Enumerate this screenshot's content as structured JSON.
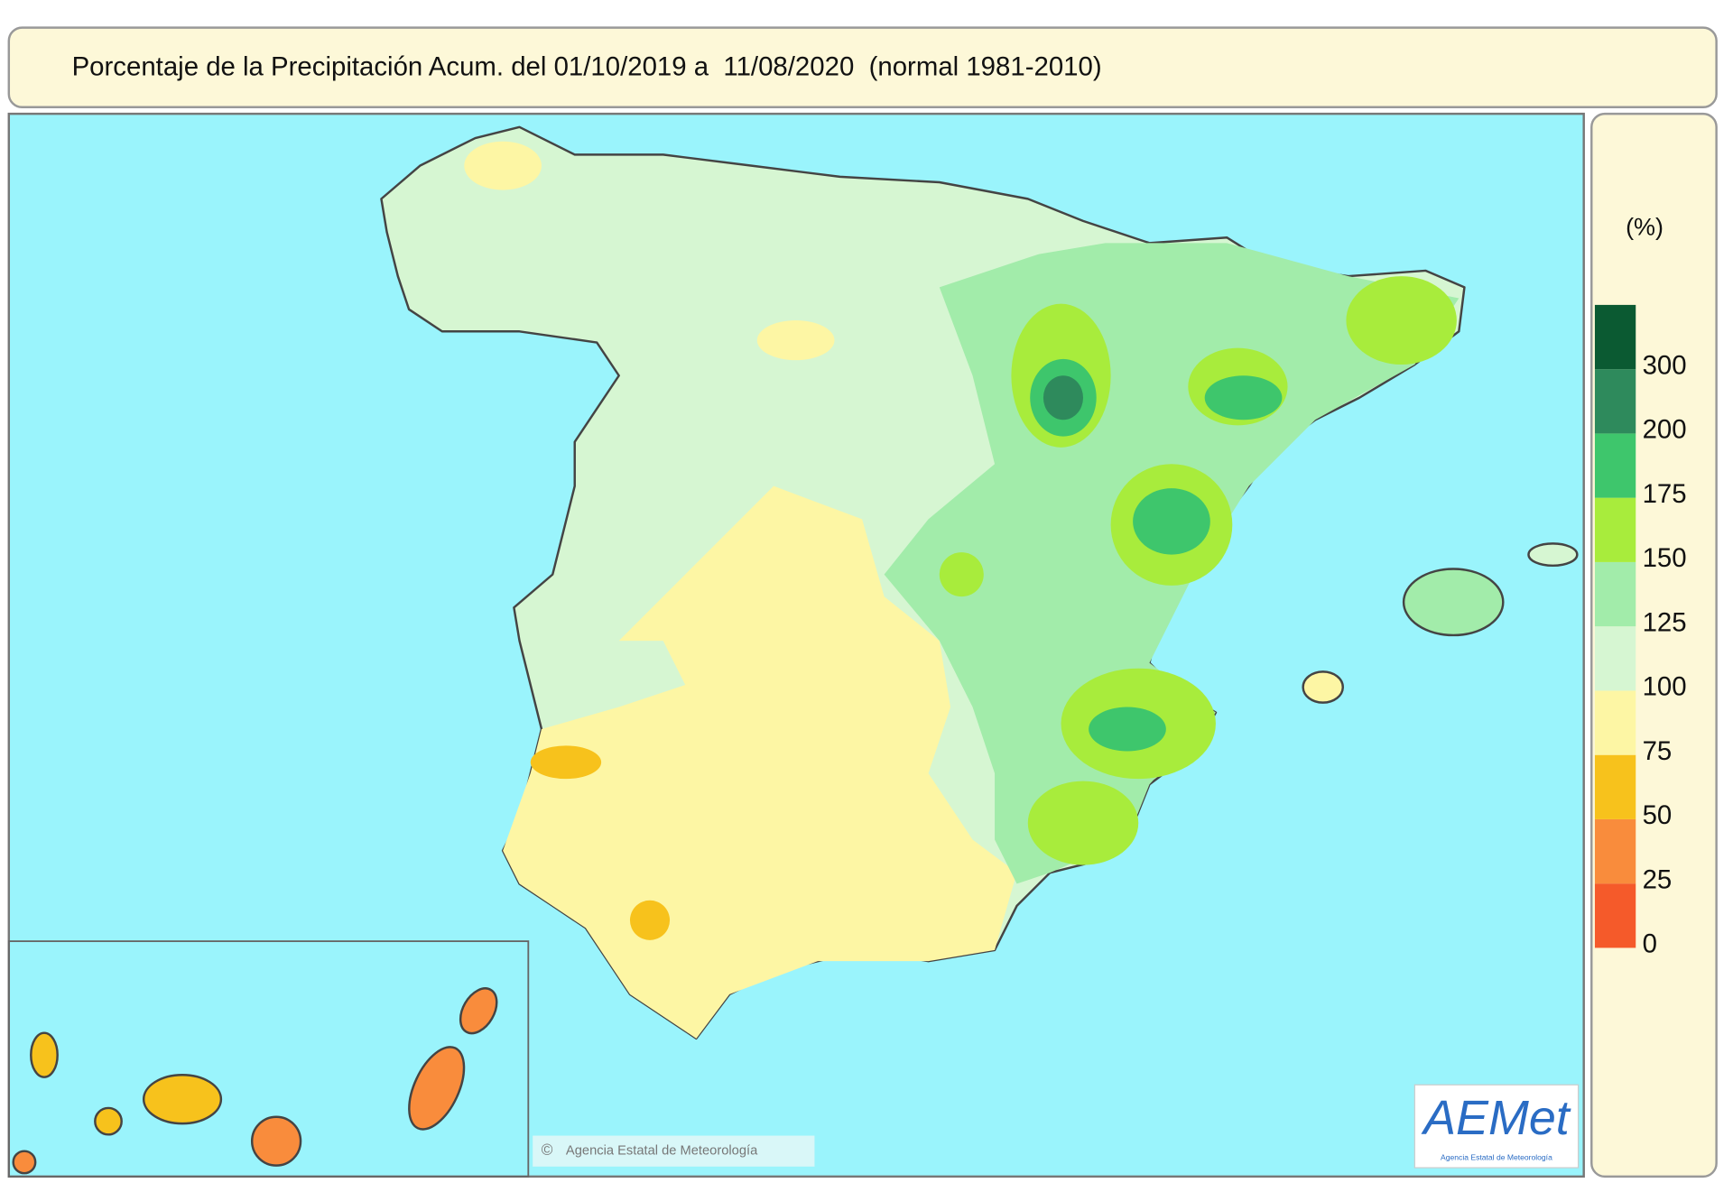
{
  "header": {
    "title": "Porcentaje de la Precipitación Acum. del 01/10/2019 a  11/08/2020  (normal 1981-2010)"
  },
  "legend": {
    "unit": "(%)",
    "levels": [
      0,
      25,
      50,
      75,
      100,
      125,
      150,
      175,
      200,
      300
    ],
    "colors": [
      "#f55a2a",
      "#f98c3c",
      "#f7c21c",
      "#fdf6a4",
      "#d6f6d2",
      "#a2ecaa",
      "#a8ec3c",
      "#3ec66c",
      "#2e8a5c",
      "#0b5a32"
    ]
  },
  "footer": {
    "copyright_symbol": "©",
    "copyright": "Agencia Estatal de Meteorología",
    "logo": "AEMet",
    "logo_subtitle": "Agencia Estatal de Meteorología"
  }
}
